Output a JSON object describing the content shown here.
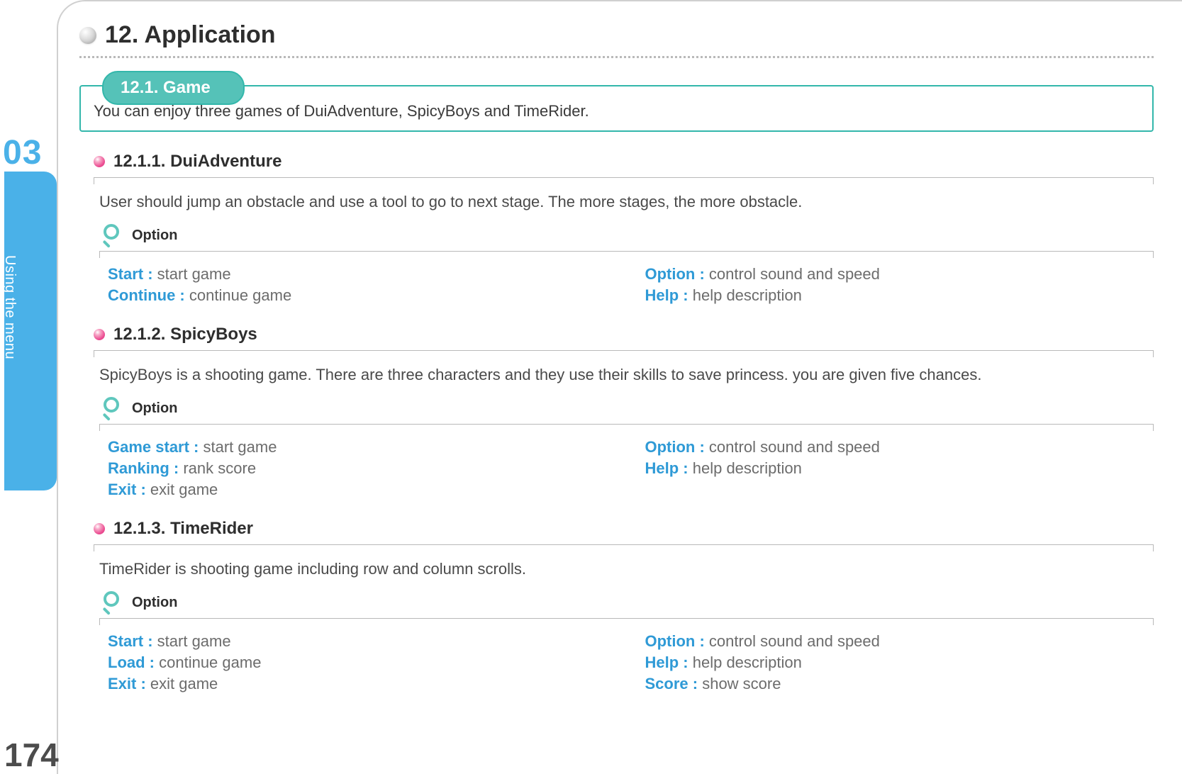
{
  "colors": {
    "accent_blue": "#4ab1e8",
    "accent_teal_border": "#33b7ab",
    "accent_teal_fill": "#55c2b8",
    "accent_teal_icon": "#5fc7bd",
    "key_blue": "#2f9ad6",
    "text_dark": "#2e2e2e",
    "text_body": "#4a4a4a",
    "text_muted": "#6c6c6c",
    "rule_grey": "#b9b9b9",
    "pink_dot": "#ec4f93"
  },
  "page": {
    "chapter_number": "03",
    "side_label": "Using the menu",
    "page_number": "174"
  },
  "heading": {
    "title": "12. Application"
  },
  "section": {
    "pill": "12.1. Game",
    "intro": "You can enjoy three games of DuiAdventure, SpicyBoys and TimeRider."
  },
  "option_label": "Option",
  "subs": [
    {
      "title": "12.1.1. DuiAdventure",
      "desc": "User should jump an obstacle and use a tool to go to next stage. The more stages, the more obstacle.",
      "left": [
        {
          "key": "Start  :",
          "val": " start game"
        },
        {
          "key": "Continue  :",
          "val": " continue game"
        }
      ],
      "right": [
        {
          "key": "Option :",
          "val": " control sound and speed"
        },
        {
          "key": "Help :",
          "val": " help description"
        }
      ]
    },
    {
      "title": "12.1.2. SpicyBoys",
      "desc": "SpicyBoys is a shooting game. There are three characters and they use their skills to save princess. you are given five chances.",
      "left": [
        {
          "key": "Game start  :",
          "val": " start game"
        },
        {
          "key": "Ranking  :",
          "val": "  rank score"
        },
        {
          "key": "Exit  :",
          "val": "  exit game"
        }
      ],
      "right": [
        {
          "key": "Option :",
          "val": " control sound and speed"
        },
        {
          "key": "Help :",
          "val": "  help description"
        }
      ]
    },
    {
      "title": "12.1.3. TimeRider",
      "desc": "TimeRider is shooting game including row and column scrolls.",
      "left": [
        {
          "key": "Start  :",
          "val": " start game"
        },
        {
          "key": "Load  :",
          "val": "  continue game"
        },
        {
          "key": "Exit  :",
          "val": "  exit game"
        }
      ],
      "right": [
        {
          "key": "Option :",
          "val": "  control sound and speed"
        },
        {
          "key": "Help :",
          "val": "  help description"
        },
        {
          "key": "Score :",
          "val": "  show score"
        }
      ]
    }
  ]
}
